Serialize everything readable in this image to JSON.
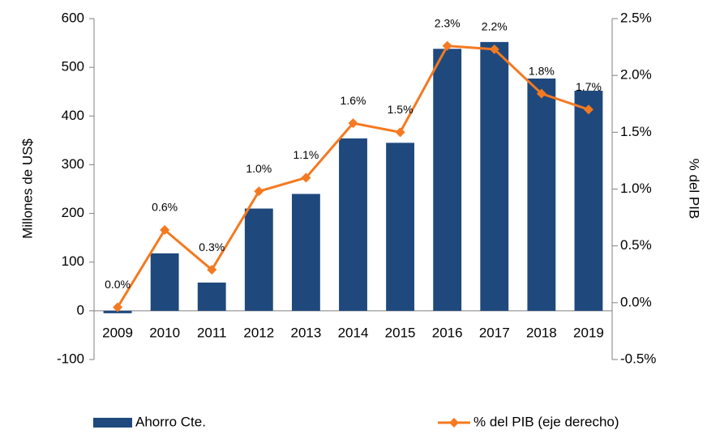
{
  "chart_data": {
    "type": "bar",
    "categories": [
      "2009",
      "2010",
      "2011",
      "2012",
      "2013",
      "2014",
      "2015",
      "2016",
      "2017",
      "2018",
      "2019"
    ],
    "ylabel": "Millones de US$",
    "y2label": "% del PIB",
    "ylim": [
      -100,
      600
    ],
    "yticks": [
      -100,
      0,
      100,
      200,
      300,
      400,
      500,
      600
    ],
    "y2lim": [
      -0.5,
      2.5
    ],
    "y2ticks": [
      {
        "value": -0.5,
        "label": "-0.5%"
      },
      {
        "value": 0,
        "label": "0.0%"
      },
      {
        "value": 0.5,
        "label": "0.5%"
      },
      {
        "value": 1,
        "label": "1.0%"
      },
      {
        "value": 1.5,
        "label": "1.5%"
      },
      {
        "value": 2,
        "label": "2.0%"
      },
      {
        "value": 2.5,
        "label": "2.5%"
      }
    ],
    "legend": "bottom",
    "series": [
      {
        "name": "Ahorro Cte.",
        "type": "bar",
        "color": "#1f497d",
        "values": [
          -5,
          118,
          58,
          210,
          240,
          354,
          345,
          538,
          552,
          477,
          452
        ]
      },
      {
        "name": "% del PIB (eje derecho)",
        "type": "line",
        "axis": "y2",
        "color": "#f47920",
        "values": [
          -0.04,
          0.64,
          0.29,
          0.98,
          1.1,
          1.58,
          1.5,
          2.26,
          2.23,
          1.84,
          1.7
        ],
        "value_labels": [
          "0.0%",
          "0.6%",
          "0.3%",
          "1.0%",
          "1.1%",
          "1.6%",
          "1.5%",
          "2.3%",
          "2.2%",
          "1.8%",
          "1.7%"
        ]
      }
    ]
  }
}
